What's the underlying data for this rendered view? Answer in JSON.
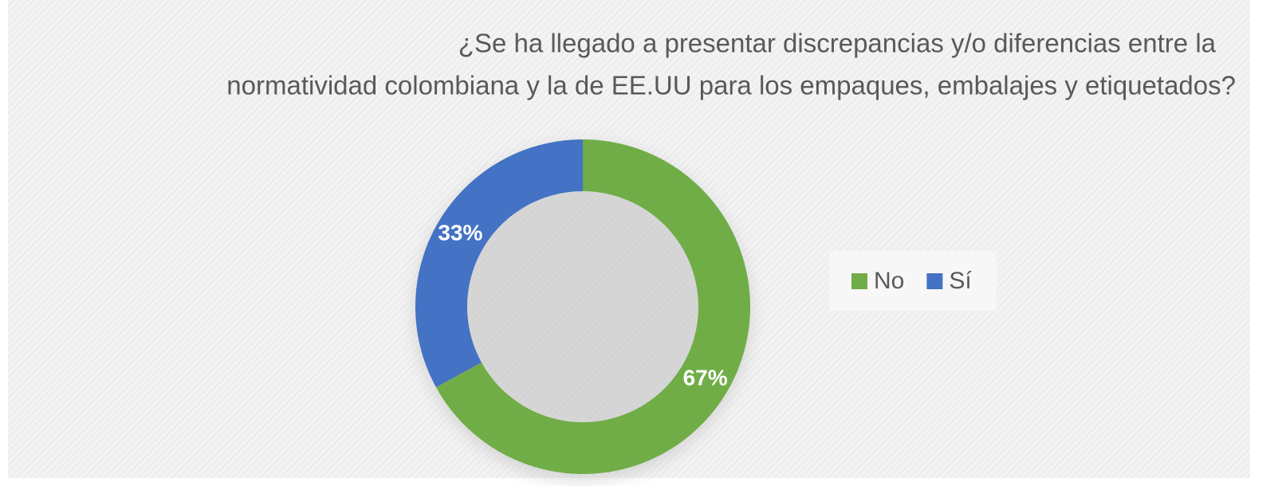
{
  "chart_data": {
    "type": "donut",
    "title": [
      "¿Se ha llegado a presentar discrepancias y/o diferencias entre la",
      "normatividad colombiana y la de EE.UU para los empaques, embalajes y etiquetados?"
    ],
    "categories": [
      "No",
      "Sí"
    ],
    "values": [
      67,
      33
    ],
    "value_labels": [
      "67%",
      "33%"
    ],
    "colors": [
      "#70ad47",
      "#4472c4"
    ],
    "legend": "right"
  }
}
